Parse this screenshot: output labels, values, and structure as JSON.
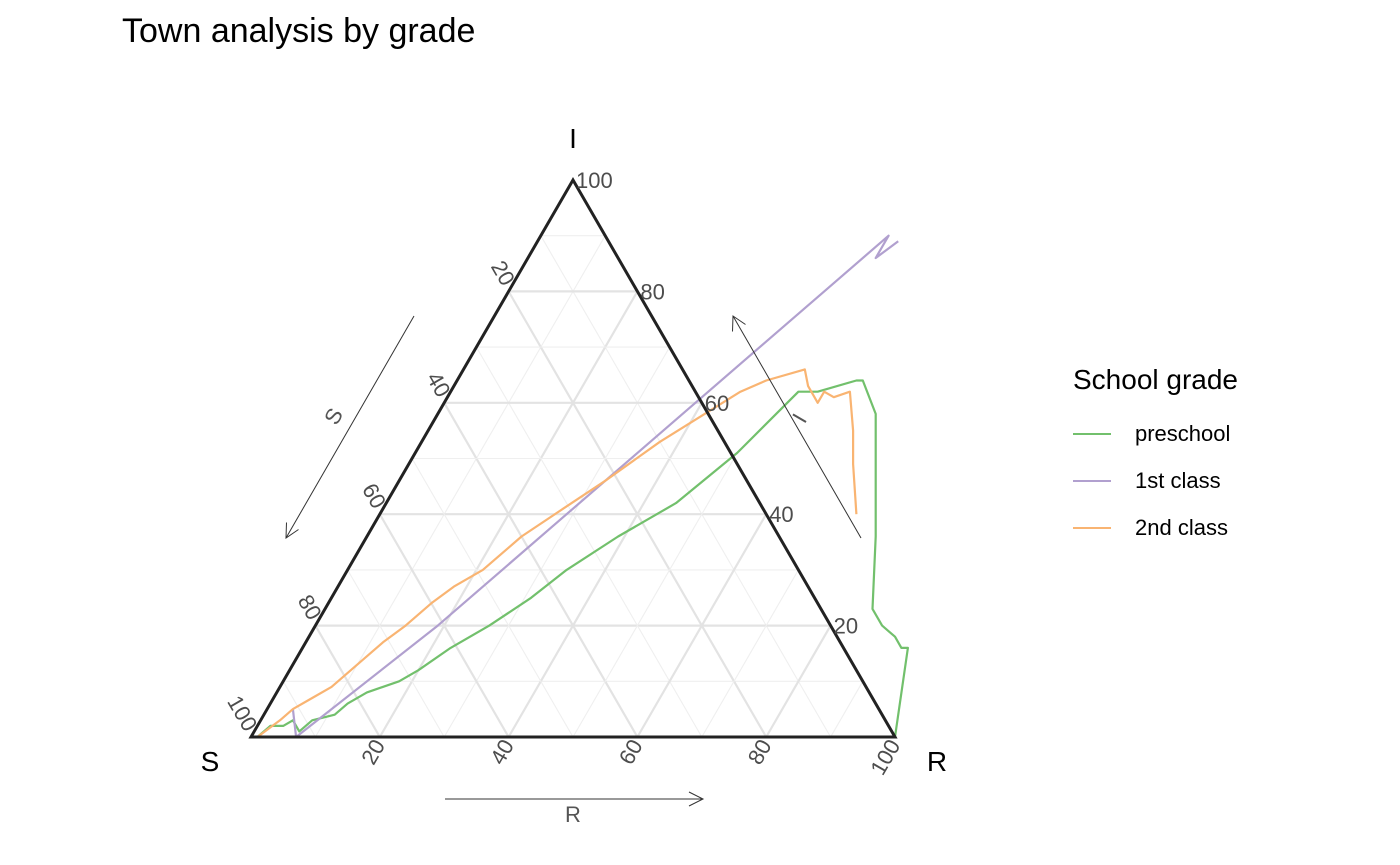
{
  "chart_data": {
    "type": "ternary-line",
    "title": "Town analysis by grade",
    "axes": {
      "top": {
        "name": "I",
        "arrow_label": "I"
      },
      "left": {
        "name": "S",
        "arrow_label": "S"
      },
      "right": {
        "name": "R",
        "arrow_label": "R"
      }
    },
    "ticks": [
      "20",
      "40",
      "60",
      "80",
      "100"
    ],
    "grid": true,
    "legend": {
      "title": "School grade",
      "position": "right"
    },
    "series": [
      {
        "name": "preschool",
        "color": "#72c06c",
        "points_IR": [
          [
            0,
            1
          ],
          [
            2,
            2
          ],
          [
            2,
            4
          ],
          [
            3,
            5
          ],
          [
            1,
            7
          ],
          [
            3,
            8
          ],
          [
            4,
            11
          ],
          [
            6,
            12
          ],
          [
            8,
            14
          ],
          [
            10,
            18
          ],
          [
            12,
            20
          ],
          [
            16,
            23
          ],
          [
            20,
            27
          ],
          [
            25,
            31
          ],
          [
            30,
            34
          ],
          [
            36,
            39
          ],
          [
            42,
            45
          ],
          [
            51,
            50
          ],
          [
            62,
            54
          ],
          [
            62,
            57
          ],
          [
            64,
            62
          ],
          [
            64,
            63
          ],
          [
            58,
            68
          ],
          [
            50,
            72
          ],
          [
            36,
            79
          ],
          [
            23,
            85
          ],
          [
            20,
            88
          ],
          [
            18,
            91
          ],
          [
            16,
            93
          ],
          [
            16,
            94
          ],
          [
            0,
            100
          ]
        ]
      },
      {
        "name": "1st class",
        "color": "#b1a0cf",
        "points_IR": [
          [
            5,
            4
          ],
          [
            0,
            7
          ],
          [
            20,
            19
          ],
          [
            40,
            29
          ],
          [
            60,
            39
          ],
          [
            80,
            49
          ],
          [
            90,
            54
          ],
          [
            86,
            54
          ],
          [
            89,
            56
          ]
        ]
      },
      {
        "name": "2nd class",
        "color": "#f9b472",
        "points_IR": [
          [
            0,
            1
          ],
          [
            3,
            3
          ],
          [
            5,
            4
          ],
          [
            7,
            6
          ],
          [
            9,
            8
          ],
          [
            13,
            10
          ],
          [
            17,
            12
          ],
          [
            20,
            14
          ],
          [
            24,
            16
          ],
          [
            27,
            18
          ],
          [
            30,
            21
          ],
          [
            36,
            24
          ],
          [
            41,
            28
          ],
          [
            46,
            32
          ],
          [
            53,
            37
          ],
          [
            62,
            45
          ],
          [
            64,
            48
          ],
          [
            66,
            53
          ],
          [
            63,
            55
          ],
          [
            61,
            57
          ],
          [
            61,
            57
          ],
          [
            60,
            58
          ],
          [
            62,
            58
          ],
          [
            61,
            60
          ],
          [
            62,
            62
          ],
          [
            55,
            66
          ],
          [
            49,
            69
          ],
          [
            40,
            74
          ]
        ]
      }
    ]
  }
}
